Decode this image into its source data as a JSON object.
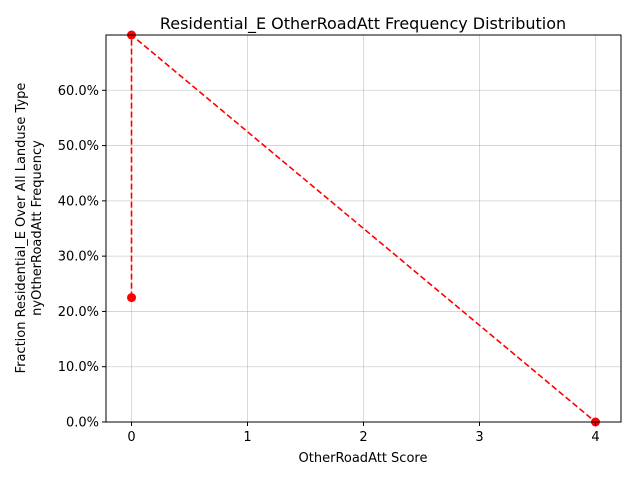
{
  "chart_data": {
    "type": "line",
    "title": "Residential_E OtherRoadAtt Frequency Distribution",
    "xlabel": "OtherRoadAtt Score",
    "ylabel_lines": [
      "Fraction Residential_E Over All Landuse Type",
      "nyOtherRoadAtt Frequency"
    ],
    "xlim": [
      -0.22,
      4.22
    ],
    "ylim": [
      0.0,
      0.7
    ],
    "x_ticks": [
      0,
      1,
      2,
      3,
      4
    ],
    "x_tick_labels": [
      "0",
      "1",
      "2",
      "3",
      "4"
    ],
    "y_ticks": [
      0.0,
      0.1,
      0.2,
      0.3,
      0.4,
      0.5,
      0.6
    ],
    "y_tick_labels": [
      "0.0%",
      "10.0%",
      "20.0%",
      "30.0%",
      "40.0%",
      "50.0%",
      "60.0%"
    ],
    "grid": true,
    "series": [
      {
        "color": "#ff0000",
        "line_style": "dashed",
        "marker": "circle",
        "x": [
          0,
          0,
          4
        ],
        "y": [
          0.225,
          0.7,
          0.0
        ]
      }
    ]
  }
}
